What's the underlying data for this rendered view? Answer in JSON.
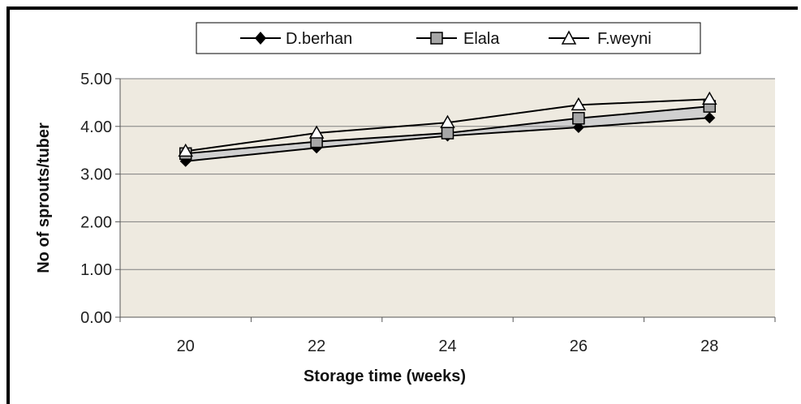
{
  "chart_data": {
    "type": "line",
    "title": "",
    "xlabel": "Storage time (weeks)",
    "ylabel": "No of sprouts/tuber",
    "categories": [
      "20",
      "22",
      "24",
      "26",
      "28"
    ],
    "ylim": [
      0,
      5
    ],
    "yticks": [
      "0.00",
      "1.00",
      "2.00",
      "3.00",
      "4.00",
      "5.00"
    ],
    "grid": true,
    "legend_position": "top",
    "series": [
      {
        "name": "D.berhan",
        "marker": "diamond",
        "values": [
          3.27,
          3.55,
          3.8,
          3.98,
          4.18
        ]
      },
      {
        "name": "Elala",
        "marker": "square",
        "values": [
          3.43,
          3.68,
          3.86,
          4.17,
          4.42
        ]
      },
      {
        "name": "F.weyni",
        "marker": "triangle",
        "values": [
          3.48,
          3.86,
          4.08,
          4.45,
          4.57
        ]
      }
    ],
    "colors": {
      "plot_background": "#EEEAE0",
      "gridline": "#7F7F7F",
      "line": "#000000",
      "band_fill": "#D0D0D0",
      "square_marker": "#A6A6A6"
    }
  }
}
